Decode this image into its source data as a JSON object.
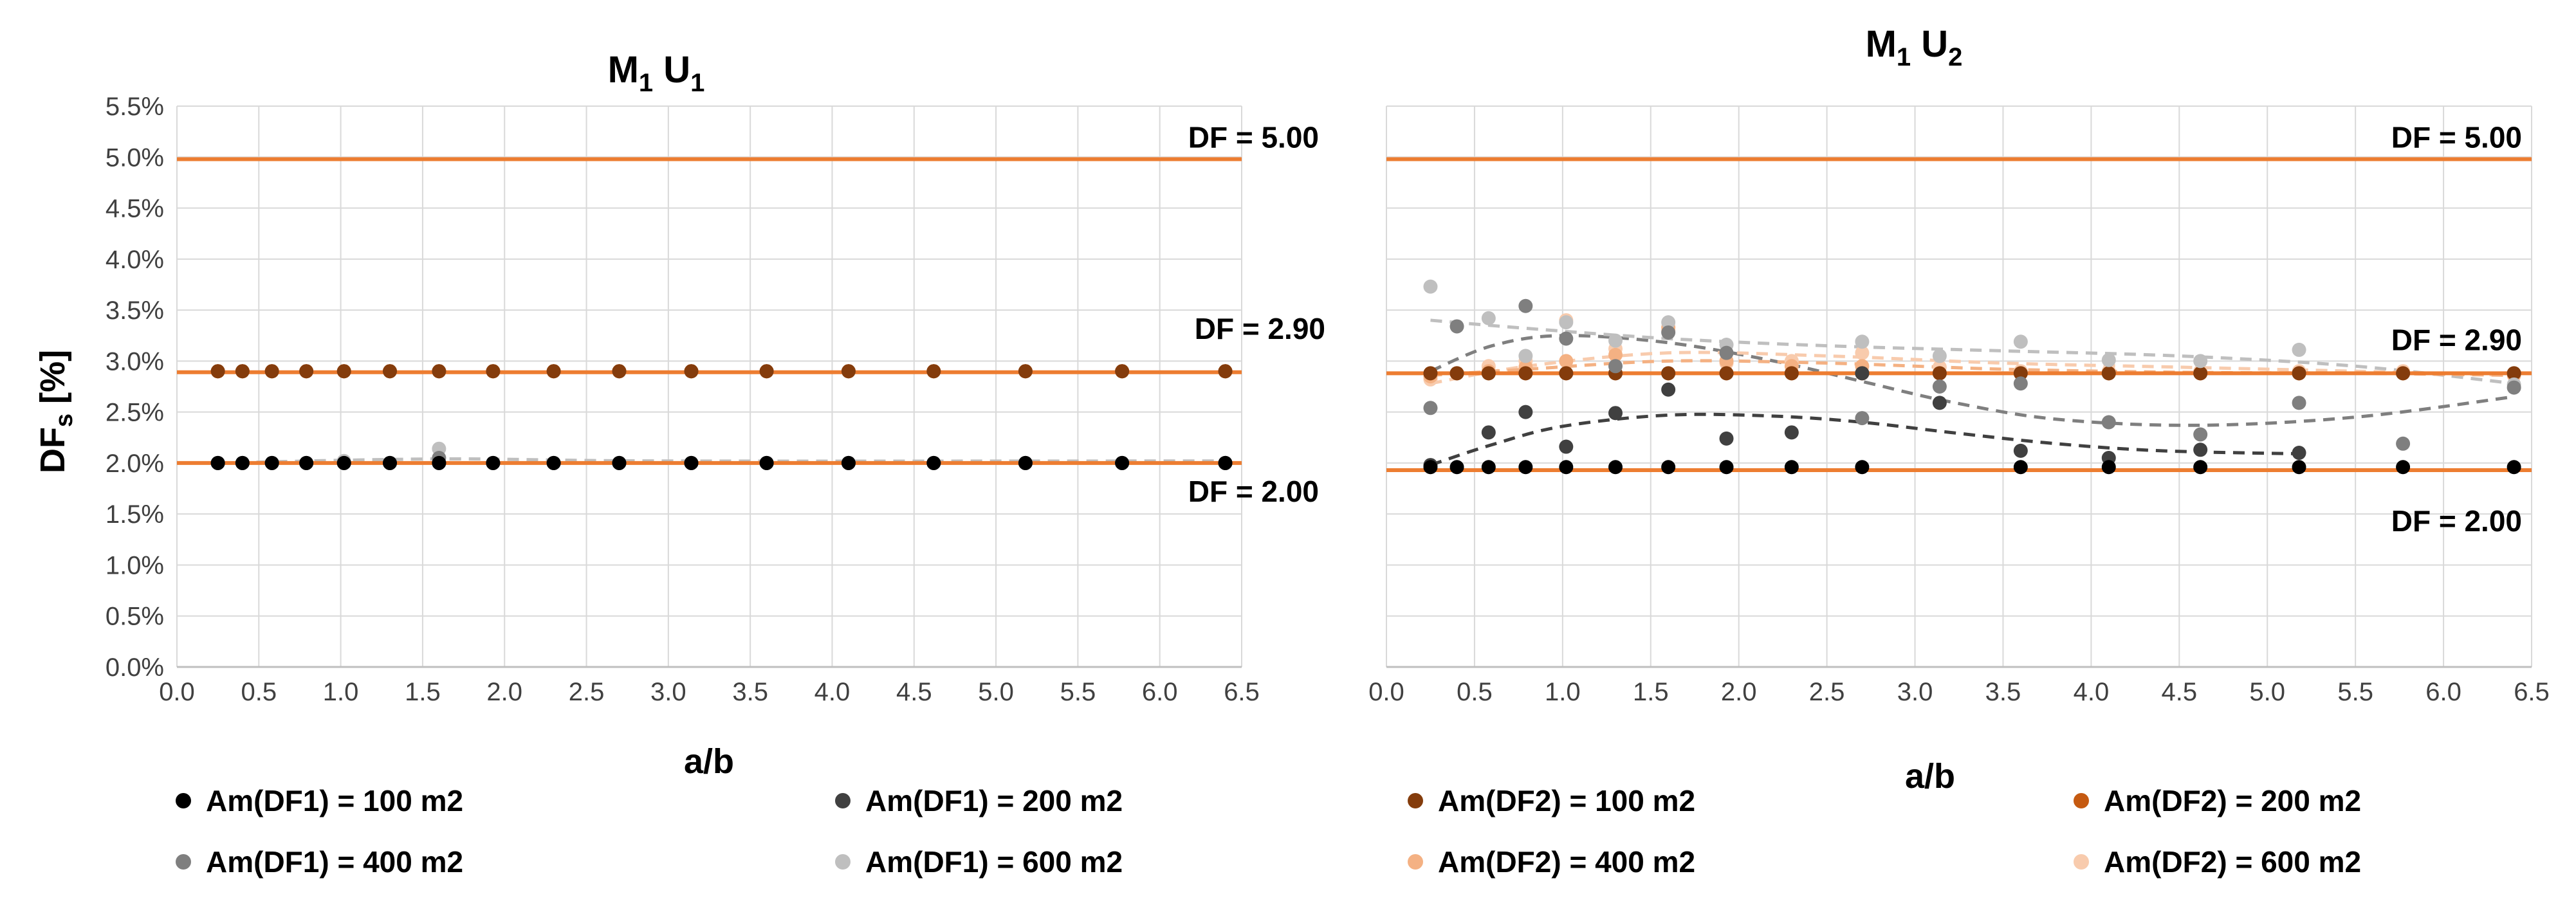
{
  "figure": {
    "ylabel_main": "DF",
    "ylabel_sub": "s",
    "ylabel_rest": " [%]",
    "xlabel": "a/b"
  },
  "legend": [
    {
      "label": "Am(DF1) = 100 m2",
      "color": "#000000"
    },
    {
      "label": "Am(DF1) = 200 m2",
      "color": "#404040"
    },
    {
      "label": "Am(DF2) = 100 m2",
      "color": "#843C0C"
    },
    {
      "label": "Am(DF2) = 200 m2",
      "color": "#C55A11"
    },
    {
      "label": "Am(DF1) = 400 m2",
      "color": "#7F7F7F"
    },
    {
      "label": "Am(DF1) = 600 m2",
      "color": "#BFBFBF"
    },
    {
      "label": "Am(DF2) = 400 m2",
      "color": "#F4B183"
    },
    {
      "label": "Am(DF2) = 600 m2",
      "color": "#F8CBAD"
    }
  ],
  "chart_data": [
    {
      "type": "scatter",
      "title_main": "M",
      "title_sub1": "1",
      "title_mid": " U",
      "title_sub2": "1",
      "xlabel": "a/b",
      "ylabel": "DFs [%]",
      "xlim": [
        0,
        6.5
      ],
      "ylim": [
        0,
        5.5
      ],
      "xticks": [
        "0.0",
        "0.5",
        "1.0",
        "1.5",
        "2.0",
        "2.5",
        "3.0",
        "3.5",
        "4.0",
        "4.5",
        "5.0",
        "5.5",
        "6.0",
        "6.5"
      ],
      "yticks": [
        "0.0%",
        "0.5%",
        "1.0%",
        "1.5%",
        "2.0%",
        "2.5%",
        "3.0%",
        "3.5%",
        "4.0%",
        "4.5%",
        "5.0%",
        "5.5%"
      ],
      "grid": true,
      "reference_lines": [
        {
          "label": "DF = 5.00",
          "value": 4.98
        },
        {
          "label": "DF = 2.90",
          "value": 2.89
        },
        {
          "label": "DF = 2.00",
          "value": 2.0
        }
      ],
      "x": [
        0.25,
        0.4,
        0.58,
        0.79,
        1.02,
        1.3,
        1.6,
        1.93,
        2.3,
        2.7,
        3.14,
        3.6,
        4.1,
        4.62,
        5.18,
        5.77,
        6.4
      ],
      "series": [
        {
          "name": "Am(DF1) = 100 m2",
          "color": "#000000",
          "values": [
            2.0,
            2.0,
            2.0,
            2.0,
            2.0,
            2.0,
            2.0,
            2.0,
            2.0,
            2.0,
            2.0,
            2.0,
            2.0,
            2.0,
            2.0,
            2.0,
            2.0
          ]
        },
        {
          "name": "Am(DF1) = 200 m2",
          "color": "#404040",
          "values": [
            2.0,
            2.0,
            2.0,
            2.0,
            2.0,
            2.0,
            2.0,
            2.0,
            2.0,
            2.0,
            2.0,
            2.0,
            2.0,
            2.0,
            2.0,
            2.0,
            2.0
          ]
        },
        {
          "name": "Am(DF1) = 400 m2",
          "color": "#7F7F7F",
          "values": [
            2.0,
            2.0,
            2.0,
            2.0,
            2.0,
            2.0,
            2.05,
            2.0,
            2.0,
            2.0,
            2.0,
            2.0,
            2.0,
            2.0,
            2.0,
            2.0,
            2.0
          ]
        },
        {
          "name": "Am(DF1) = 600 m2",
          "color": "#BFBFBF",
          "values": [
            2.0,
            2.0,
            2.0,
            2.0,
            2.02,
            2.0,
            2.14,
            2.0,
            2.0,
            2.0,
            2.0,
            2.0,
            2.0,
            2.0,
            2.0,
            2.0,
            2.0
          ]
        },
        {
          "name": "Am(DF2) = 100 m2",
          "color": "#843C0C",
          "values": [
            2.9,
            2.9,
            2.9,
            2.9,
            2.9,
            2.9,
            2.9,
            2.9,
            2.9,
            2.9,
            2.9,
            2.9,
            2.9,
            2.9,
            2.9,
            2.9,
            2.9
          ]
        },
        {
          "name": "Am(DF2) = 200 m2",
          "color": "#C55A11",
          "values": [
            2.9,
            2.9,
            2.9,
            2.9,
            2.9,
            2.9,
            2.9,
            2.9,
            2.9,
            2.9,
            2.9,
            2.9,
            2.9,
            2.9,
            2.9,
            2.9,
            2.9
          ]
        },
        {
          "name": "Am(DF2) = 400 m2",
          "color": "#F4B183",
          "values": [
            2.9,
            2.9,
            2.9,
            2.9,
            2.9,
            2.9,
            2.9,
            2.9,
            2.9,
            2.9,
            2.9,
            2.9,
            2.9,
            2.9,
            2.9,
            2.9,
            2.9
          ]
        },
        {
          "name": "Am(DF2) = 600 m2",
          "color": "#F8CBAD",
          "values": [
            2.9,
            2.9,
            2.9,
            2.9,
            2.9,
            2.9,
            2.9,
            2.9,
            2.9,
            2.9,
            2.9,
            2.9,
            2.9,
            2.9,
            2.9,
            2.9,
            2.9
          ]
        }
      ],
      "trendlines": [
        {
          "series": "Am(DF1) = 600 m2",
          "color": "#BFBFBF",
          "x": [
            0.25,
            1.6,
            3.0,
            6.4
          ],
          "y": [
            2.0,
            2.04,
            2.02,
            2.02
          ]
        }
      ]
    },
    {
      "type": "scatter",
      "title_main": "M",
      "title_sub1": "1",
      "title_mid": " U",
      "title_sub2": "2",
      "xlabel": "a/b",
      "ylabel": "DFs [%]",
      "xlim": [
        0,
        6.5
      ],
      "ylim": [
        0,
        5.5
      ],
      "xticks": [
        "0.0",
        "0.5",
        "1.0",
        "1.5",
        "2.0",
        "2.5",
        "3.0",
        "3.5",
        "4.0",
        "4.5",
        "5.0",
        "5.5",
        "6.0",
        "6.5"
      ],
      "yticks": [
        "0.0%",
        "0.5%",
        "1.0%",
        "1.5%",
        "2.0%",
        "2.5%",
        "3.0%",
        "3.5%",
        "4.0%",
        "4.5%",
        "5.0%",
        "5.5%"
      ],
      "grid": true,
      "reference_lines": [
        {
          "label": "DF = 5.00",
          "value": 4.98
        },
        {
          "label": "DF = 2.90",
          "value": 2.88
        },
        {
          "label": "DF = 2.00",
          "value": 1.93
        }
      ],
      "x": [
        0.25,
        0.4,
        0.58,
        0.79,
        1.02,
        1.3,
        1.6,
        1.93,
        2.3,
        2.7,
        3.14,
        3.6,
        4.1,
        4.62,
        5.18,
        5.77,
        6.4
      ],
      "series": [
        {
          "name": "Am(DF1) = 100 m2",
          "color": "#000000",
          "values": [
            1.96,
            1.96,
            1.96,
            1.96,
            1.96,
            1.96,
            1.96,
            1.96,
            1.96,
            1.96,
            null,
            1.96,
            1.96,
            1.96,
            1.96,
            1.96,
            1.96
          ]
        },
        {
          "name": "Am(DF1) = 200 m2",
          "color": "#404040",
          "values": [
            1.98,
            null,
            2.3,
            2.5,
            2.16,
            2.49,
            2.72,
            2.24,
            2.3,
            2.88,
            2.59,
            2.12,
            2.05,
            2.13,
            2.1,
            null,
            null
          ]
        },
        {
          "name": "Am(DF1) = 400 m2",
          "color": "#7F7F7F",
          "values": [
            2.54,
            3.34,
            null,
            3.54,
            3.22,
            2.95,
            3.28,
            3.08,
            null,
            2.44,
            2.75,
            2.78,
            2.4,
            2.28,
            2.59,
            2.19,
            2.74
          ]
        },
        {
          "name": "Am(DF1) = 600 m2",
          "color": "#BFBFBF",
          "values": [
            3.73,
            null,
            3.42,
            3.05,
            3.38,
            3.2,
            3.38,
            3.16,
            null,
            3.19,
            3.05,
            3.19,
            3.01,
            3.0,
            3.11,
            null,
            2.77
          ]
        },
        {
          "name": "Am(DF2) = 100 m2",
          "color": "#843C0C",
          "values": [
            2.88,
            2.88,
            2.88,
            2.88,
            2.88,
            2.88,
            2.88,
            2.88,
            2.88,
            2.88,
            2.88,
            2.88,
            2.88,
            2.88,
            2.88,
            2.88,
            2.88
          ]
        },
        {
          "name": "Am(DF2) = 200 m2",
          "color": "#C55A11",
          "values": [
            2.88,
            2.88,
            2.88,
            2.88,
            2.88,
            2.88,
            2.88,
            2.88,
            2.88,
            2.88,
            2.88,
            2.88,
            2.88,
            2.88,
            2.88,
            2.88,
            2.88
          ]
        },
        {
          "name": "Am(DF2) = 400 m2",
          "color": "#F4B183",
          "values": [
            2.85,
            2.88,
            2.9,
            2.94,
            3.0,
            3.06,
            3.33,
            3.0,
            2.95,
            2.95,
            2.88,
            2.88,
            2.88,
            2.88,
            2.88,
            2.88,
            2.86
          ]
        },
        {
          "name": "Am(DF2) = 600 m2",
          "color": "#F8CBAD",
          "values": [
            2.82,
            2.88,
            2.95,
            3.0,
            3.4,
            3.12,
            3.3,
            2.98,
            3.0,
            3.08,
            2.94,
            2.9,
            2.9,
            2.9,
            2.9,
            2.9,
            2.87
          ]
        }
      ],
      "trendlines": [
        {
          "series": "Am(DF1) = 200 m2",
          "color": "#404040",
          "x": [
            0.25,
            0.6,
            1.0,
            1.6,
            2.2,
            2.7,
            3.2,
            3.8,
            4.4,
            5.2
          ],
          "y": [
            1.98,
            2.18,
            2.36,
            2.47,
            2.46,
            2.4,
            2.3,
            2.19,
            2.12,
            2.09
          ]
        },
        {
          "series": "Am(DF1) = 400 m2",
          "color": "#7F7F7F",
          "x": [
            0.25,
            0.6,
            1.0,
            1.6,
            2.2,
            2.7,
            3.2,
            3.8,
            4.6,
            5.5,
            6.4
          ],
          "y": [
            2.9,
            3.15,
            3.25,
            3.18,
            3.0,
            2.8,
            2.6,
            2.43,
            2.37,
            2.45,
            2.65
          ]
        },
        {
          "series": "Am(DF1) = 600 m2",
          "color": "#BFBFBF",
          "x": [
            0.25,
            0.8,
            1.6,
            2.5,
            3.5,
            4.5,
            5.5,
            6.4
          ],
          "y": [
            3.4,
            3.32,
            3.22,
            3.15,
            3.1,
            3.05,
            2.95,
            2.78
          ]
        },
        {
          "series": "Am(DF2) = 600 m2",
          "color": "#F8CBAD",
          "x": [
            0.25,
            0.8,
            1.6,
            2.5,
            3.5,
            4.5,
            5.5,
            6.4
          ],
          "y": [
            2.78,
            2.95,
            3.08,
            3.05,
            2.98,
            2.94,
            2.9,
            2.86
          ]
        },
        {
          "series": "Am(DF2) = 400 m2",
          "color": "#F4B183",
          "x": [
            0.25,
            0.8,
            1.6,
            2.5,
            3.5,
            4.5,
            5.5,
            6.4
          ],
          "y": [
            2.86,
            2.92,
            3.0,
            2.98,
            2.92,
            2.89,
            2.88,
            2.86
          ]
        }
      ]
    }
  ]
}
